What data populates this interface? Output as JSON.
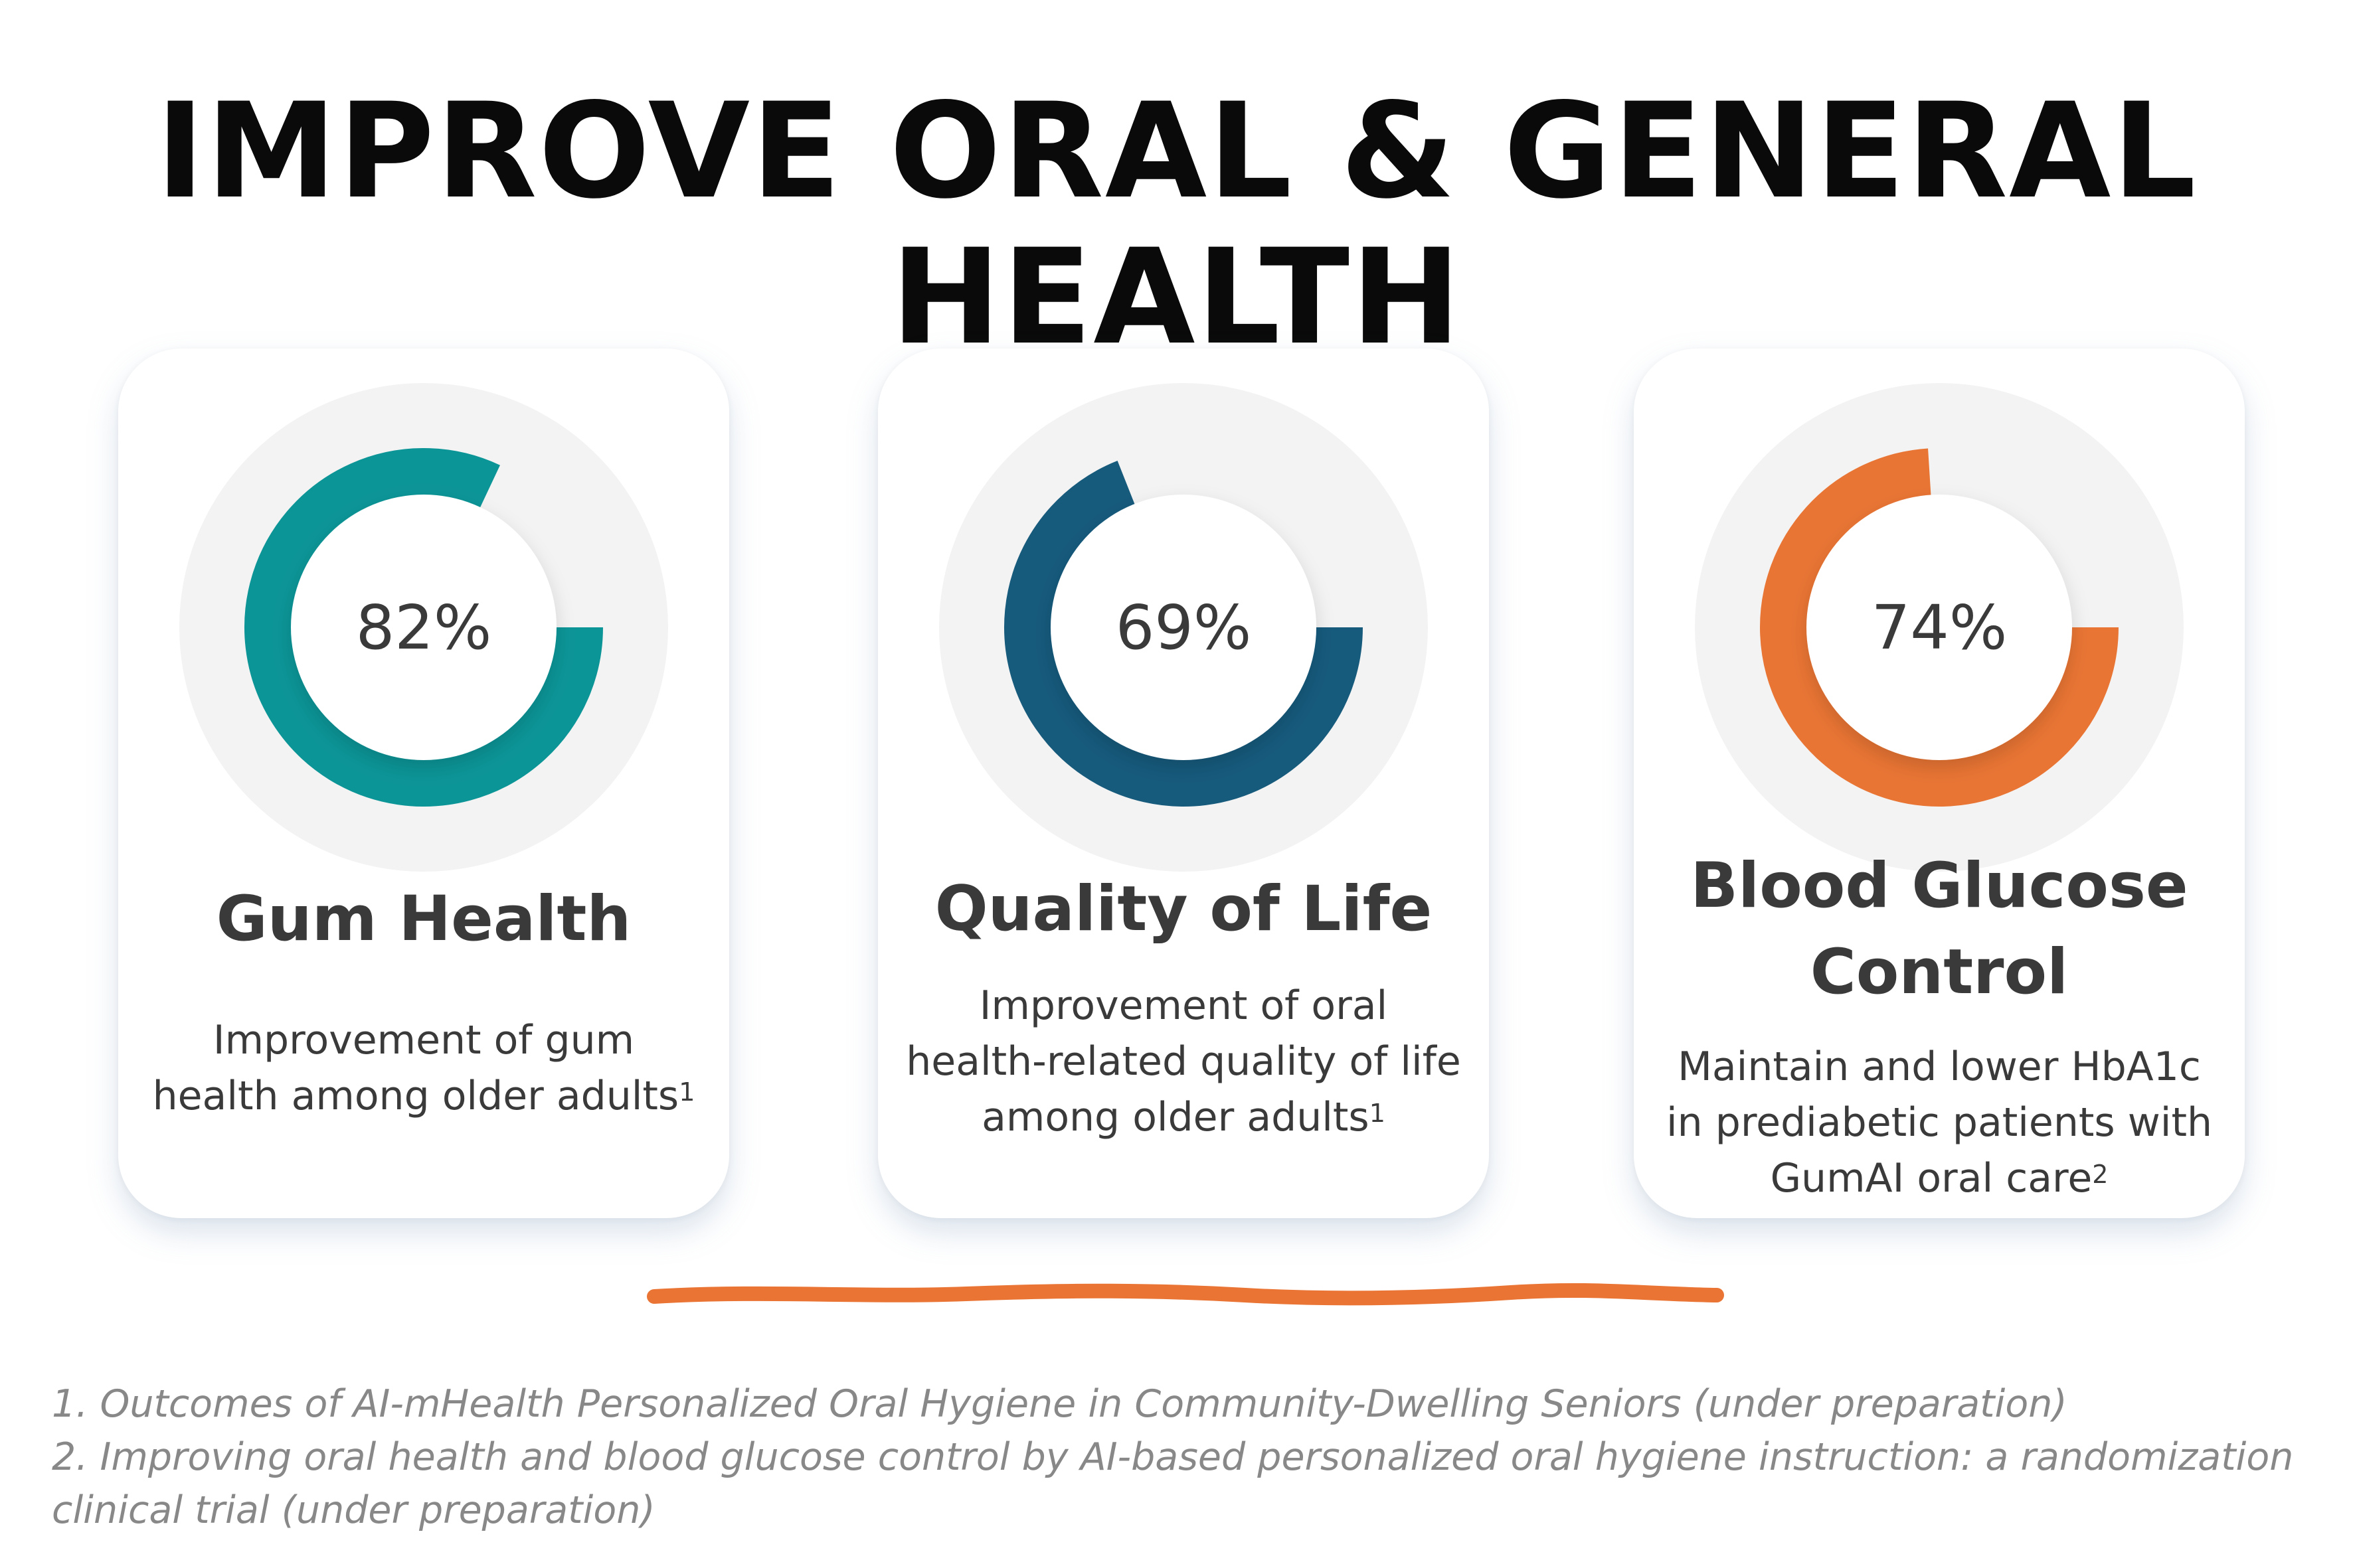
{
  "title": "IMPROVE ORAL & GENERAL HEALTH",
  "colors": {
    "teal": "#0c9597",
    "navy": "#165a7c",
    "orange": "#e97534",
    "track": "#f3f3f3",
    "divider": "#ea7434"
  },
  "chart_data": [
    {
      "type": "pie",
      "title": "Gum Health",
      "values": [
        82
      ],
      "label": "82%",
      "color": "#0c9597",
      "description": "Improvement of gum health among older adults",
      "footnote_ref": "1"
    },
    {
      "type": "pie",
      "title": "Quality of Life",
      "values": [
        69
      ],
      "label": "69%",
      "color": "#165a7c",
      "description": "Improvement of oral health-related quality of life among older adults",
      "footnote_ref": "1"
    },
    {
      "type": "pie",
      "title": "Blood Glucose Control",
      "values": [
        74
      ],
      "label": "74%",
      "color": "#e97534",
      "description": "Maintain and lower HbA1c in prediabetic patients with GumAI oral care",
      "footnote_ref": "2"
    }
  ],
  "footnotes": [
    "1. Outcomes of AI-mHealth Personalized Oral Hygiene in Community-Dwelling Seniors (under preparation)",
    "2. Improving oral health and blood glucose control by AI-based personalized oral hygiene instruction: a randomization clinical trial (under preparation)"
  ]
}
